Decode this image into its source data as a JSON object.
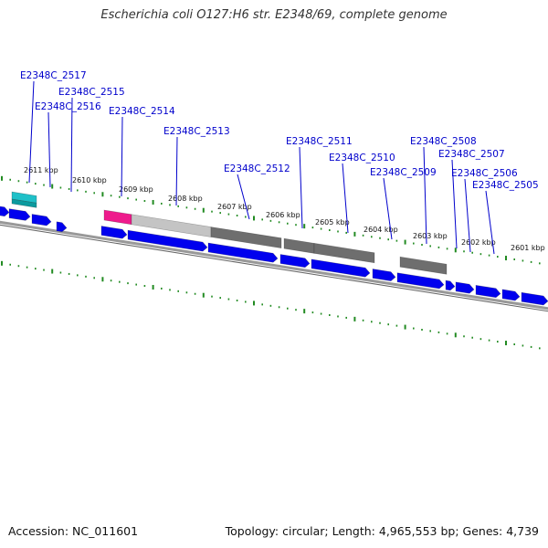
{
  "title": "Escherichia coli O127:H6 str. E2348/69, complete genome",
  "accession_text": "Accession: NC_011601",
  "summary_text": "Topology: circular; Length: 4,965,553 bp; Genes: 4,739",
  "colors": {
    "gene_label": "#0000cc",
    "cds": "#0000ee",
    "tick": "#228b22",
    "backbone": "#999999",
    "feature_gray": "#6e6e6e",
    "feature_lightgray": "#c4c4c4",
    "feature_magenta": "#ee1b8c",
    "feature_cyan": "#1fc0c8"
  },
  "scale": {
    "unit": "kbp",
    "labels": [
      "2611 kbp",
      "2610 kbp",
      "2609 kbp",
      "2608 kbp",
      "2607 kbp",
      "2606 kbp",
      "2605 kbp",
      "2604 kbp",
      "2603 kbp",
      "2602 kbp",
      "2601 kbp"
    ]
  },
  "genes": [
    "E2348C_2517",
    "E2348C_2516",
    "E2348C_2515",
    "E2348C_2514",
    "E2348C_2513",
    "E2348C_2512",
    "E2348C_2511",
    "E2348C_2510",
    "E2348C_2509",
    "E2348C_2508",
    "E2348C_2507",
    "E2348C_2506",
    "E2348C_2505"
  ]
}
